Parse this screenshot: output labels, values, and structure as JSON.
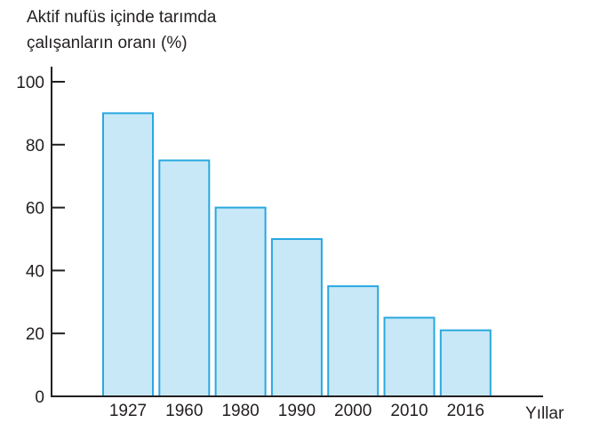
{
  "chart_data": {
    "type": "bar",
    "ylabel_lines": [
      "Aktif nufüs içinde tarımda",
      "çalışanların oranı (%)"
    ],
    "xlabel": "Yıllar",
    "categories": [
      "1927",
      "1960",
      "1980",
      "1990",
      "2000",
      "2010",
      "2016"
    ],
    "values": [
      90,
      75,
      60,
      50,
      35,
      25,
      21
    ],
    "ylim": [
      0,
      100
    ],
    "yticks": [
      0,
      20,
      40,
      60,
      80,
      100
    ],
    "grid": false,
    "colors": {
      "bar_fill": "#c8e8f8",
      "bar_stroke": "#29a8df",
      "axis": "#231f20"
    }
  }
}
